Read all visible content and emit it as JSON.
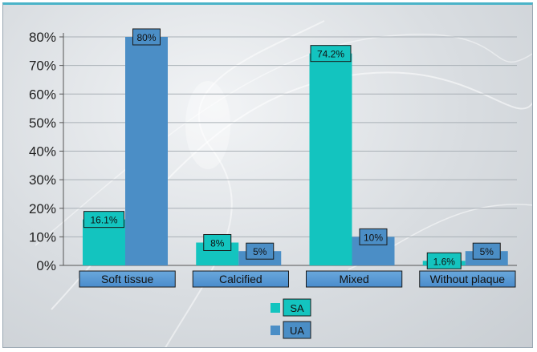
{
  "chart_data": {
    "type": "bar",
    "categories": [
      "Soft tissue",
      "Calcified",
      "Mixed",
      "Without  plaque"
    ],
    "series": [
      {
        "name": "SA",
        "values": [
          16.1,
          8,
          74.2,
          1.6
        ],
        "labels": [
          "16.1%",
          "8%",
          "74.2%",
          "1.6%"
        ],
        "color": "#13c4bf"
      },
      {
        "name": "UA",
        "values": [
          80,
          5,
          10,
          5
        ],
        "labels": [
          "80%",
          "5%",
          "10%",
          "5%"
        ],
        "color": "#4b8ec6"
      }
    ],
    "yticks": [
      "0%",
      "10%",
      "20%",
      "30%",
      "40%",
      "50%",
      "60%",
      "70%",
      "80%"
    ],
    "ylim": [
      0,
      80
    ],
    "grid": true,
    "legend_position": "bottom-center",
    "title": "",
    "xlabel": "",
    "ylabel": ""
  }
}
